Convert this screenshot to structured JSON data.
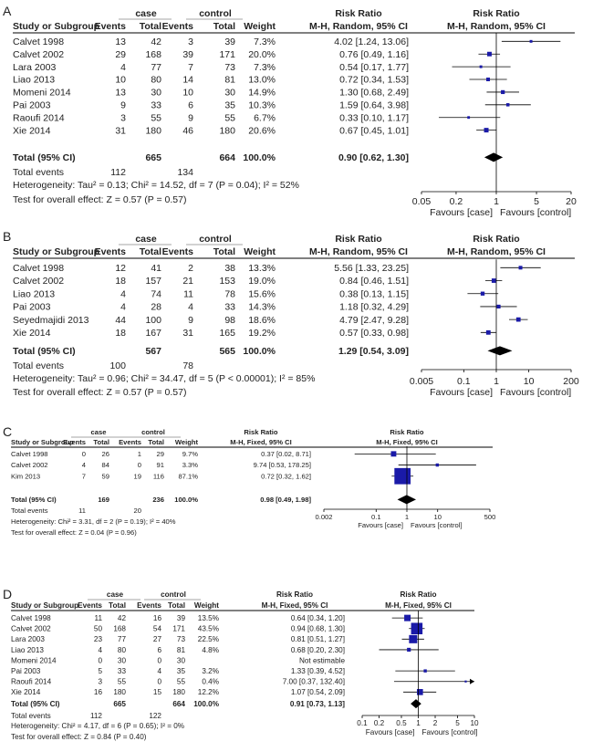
{
  "chart_data": [
    {
      "type": "forest",
      "panel_label": "A",
      "group_labels": {
        "exp": "case",
        "ctrl": "control"
      },
      "col_headers": {
        "study": "Study or Subgroup",
        "events1": "Events",
        "total1": "Total",
        "events2": "Events",
        "total2": "Total",
        "weight": "Weight",
        "rr_title": "Risk Ratio",
        "rr_method": "M-H, Random, 95% CI",
        "plot_title": "Risk Ratio",
        "plot_method": "M-H, Random, 95% CI"
      },
      "studies": [
        {
          "name": "Calvet 1998",
          "e1": "13",
          "t1": "42",
          "e2": "3",
          "t2": "39",
          "weight": "7.3%",
          "ci_text": "4.02 [1.24, 13.06]",
          "rr": 4.02,
          "lo": 1.24,
          "hi": 13.06,
          "w": 7.3
        },
        {
          "name": "Calvet 2002",
          "e1": "29",
          "t1": "168",
          "e2": "39",
          "t2": "171",
          "weight": "20.0%",
          "ci_text": "0.76 [0.49, 1.16]",
          "rr": 0.76,
          "lo": 0.49,
          "hi": 1.16,
          "w": 20.0
        },
        {
          "name": "Lara 2003",
          "e1": "4",
          "t1": "77",
          "e2": "7",
          "t2": "73",
          "weight": "7.3%",
          "ci_text": "0.54 [0.17, 1.77]",
          "rr": 0.54,
          "lo": 0.17,
          "hi": 1.77,
          "w": 7.3
        },
        {
          "name": "Liao 2013",
          "e1": "10",
          "t1": "80",
          "e2": "14",
          "t2": "81",
          "weight": "13.0%",
          "ci_text": "0.72 [0.34, 1.53]",
          "rr": 0.72,
          "lo": 0.34,
          "hi": 1.53,
          "w": 13.0
        },
        {
          "name": "Momeni 2014",
          "e1": "13",
          "t1": "30",
          "e2": "10",
          "t2": "30",
          "weight": "14.9%",
          "ci_text": "1.30 [0.68, 2.49]",
          "rr": 1.3,
          "lo": 0.68,
          "hi": 2.49,
          "w": 14.9
        },
        {
          "name": "Pai 2003",
          "e1": "9",
          "t1": "33",
          "e2": "6",
          "t2": "35",
          "weight": "10.3%",
          "ci_text": "1.59 [0.64, 3.98]",
          "rr": 1.59,
          "lo": 0.64,
          "hi": 3.98,
          "w": 10.3
        },
        {
          "name": "Raoufi 2014",
          "e1": "3",
          "t1": "55",
          "e2": "9",
          "t2": "55",
          "weight": "6.7%",
          "ci_text": "0.33 [0.10, 1.17]",
          "rr": 0.33,
          "lo": 0.1,
          "hi": 1.17,
          "w": 6.7
        },
        {
          "name": "Xie 2014",
          "e1": "31",
          "t1": "180",
          "e2": "46",
          "t2": "180",
          "weight": "20.6%",
          "ci_text": "0.67 [0.45, 1.01]",
          "rr": 0.67,
          "lo": 0.45,
          "hi": 1.01,
          "w": 20.6
        }
      ],
      "total": {
        "label": "Total (95% CI)",
        "t1": "665",
        "t2": "664",
        "weight": "100.0%",
        "ci_text": "0.90 [0.62, 1.30]",
        "rr": 0.9,
        "lo": 0.62,
        "hi": 1.3
      },
      "total_events": {
        "label": "Total events",
        "e1": "112",
        "e2": "134"
      },
      "heterogeneity": "Heterogeneity: Tau² = 0.13; Chi² = 14.52, df = 7 (P = 0.04); I² = 52%",
      "overall_test": "Test for overall effect: Z = 0.57 (P = 0.57)",
      "axis": {
        "min": 0.05,
        "max": 20,
        "ticks": [
          0.05,
          0.2,
          1,
          5,
          20
        ],
        "tick_labels": [
          "0.05",
          "0.2",
          "1",
          "5",
          "20"
        ]
      },
      "favours_left": "Favours [case]",
      "favours_right": "Favours [control]"
    },
    {
      "type": "forest",
      "panel_label": "B",
      "group_labels": {
        "exp": "case",
        "ctrl": "control"
      },
      "col_headers": {
        "study": "Study or Subgroup",
        "events1": "Events",
        "total1": "Total",
        "events2": "Events",
        "total2": "Total",
        "weight": "Weight",
        "rr_title": "Risk Ratio",
        "rr_method": "M-H, Random, 95% CI",
        "plot_title": "Risk Ratio",
        "plot_method": "M-H, Random, 95% CI"
      },
      "studies": [
        {
          "name": "Calvet 1998",
          "e1": "12",
          "t1": "41",
          "e2": "2",
          "t2": "38",
          "weight": "13.3%",
          "ci_text": "5.56 [1.33, 23.25]",
          "rr": 5.56,
          "lo": 1.33,
          "hi": 23.25,
          "w": 13.3
        },
        {
          "name": "Calvet 2002",
          "e1": "18",
          "t1": "157",
          "e2": "21",
          "t2": "153",
          "weight": "19.0%",
          "ci_text": "0.84 [0.46, 1.51]",
          "rr": 0.84,
          "lo": 0.46,
          "hi": 1.51,
          "w": 19.0
        },
        {
          "name": "Liao 2013",
          "e1": "4",
          "t1": "74",
          "e2": "11",
          "t2": "78",
          "weight": "15.6%",
          "ci_text": "0.38 [0.13, 1.15]",
          "rr": 0.38,
          "lo": 0.13,
          "hi": 1.15,
          "w": 15.6
        },
        {
          "name": "Pai 2003",
          "e1": "4",
          "t1": "28",
          "e2": "4",
          "t2": "33",
          "weight": "14.3%",
          "ci_text": "1.18 [0.32, 4.29]",
          "rr": 1.18,
          "lo": 0.32,
          "hi": 4.29,
          "w": 14.3
        },
        {
          "name": "Seyedmajidi 2013",
          "e1": "44",
          "t1": "100",
          "e2": "9",
          "t2": "98",
          "weight": "18.6%",
          "ci_text": "4.79 [2.47, 9.28]",
          "rr": 4.79,
          "lo": 2.47,
          "hi": 9.28,
          "w": 18.6
        },
        {
          "name": "Xie 2014",
          "e1": "18",
          "t1": "167",
          "e2": "31",
          "t2": "165",
          "weight": "19.2%",
          "ci_text": "0.57 [0.33, 0.98]",
          "rr": 0.57,
          "lo": 0.33,
          "hi": 0.98,
          "w": 19.2
        }
      ],
      "total": {
        "label": "Total (95% CI)",
        "t1": "567",
        "t2": "565",
        "weight": "100.0%",
        "ci_text": "1.29 [0.54, 3.09]",
        "rr": 1.29,
        "lo": 0.54,
        "hi": 3.09
      },
      "total_events": {
        "label": "Total events",
        "e1": "100",
        "e2": "78"
      },
      "heterogeneity": "Heterogeneity: Tau² = 0.96; Chi² = 34.47, df = 5 (P < 0.00001); I² = 85%",
      "overall_test": "Test for overall effect: Z = 0.57 (P = 0.57)",
      "axis": {
        "min": 0.005,
        "max": 200,
        "ticks": [
          0.005,
          0.1,
          1,
          10,
          200
        ],
        "tick_labels": [
          "0.005",
          "0.1",
          "1",
          "10",
          "200"
        ]
      },
      "favours_left": "Favours [case]",
      "favours_right": "Favours [control]"
    },
    {
      "type": "forest",
      "panel_label": "C",
      "group_labels": {
        "exp": "case",
        "ctrl": "control"
      },
      "col_headers": {
        "study": "Study or Subgroup",
        "events1": "Events",
        "total1": "Total",
        "events2": "Events",
        "total2": "Total",
        "weight": "Weight",
        "rr_title": "Risk Ratio",
        "rr_method": "M-H, Fixed, 95% CI",
        "plot_title": "Risk Ratio",
        "plot_method": "M-H, Fixed, 95% CI"
      },
      "studies": [
        {
          "name": "Calvet 1998",
          "e1": "0",
          "t1": "26",
          "e2": "1",
          "t2": "29",
          "weight": "9.7%",
          "ci_text": "0.37 [0.02, 8.71]",
          "rr": 0.37,
          "lo": 0.02,
          "hi": 8.71,
          "w": 9.7
        },
        {
          "name": "Calvet 2002",
          "e1": "4",
          "t1": "84",
          "e2": "0",
          "t2": "91",
          "weight": "3.3%",
          "ci_text": "9.74 [0.53, 178.25]",
          "rr": 9.74,
          "lo": 0.53,
          "hi": 178.25,
          "w": 3.3
        },
        {
          "name": "Kim 2013",
          "e1": "7",
          "t1": "59",
          "e2": "19",
          "t2": "116",
          "weight": "87.1%",
          "ci_text": "0.72 [0.32, 1.62]",
          "rr": 0.72,
          "lo": 0.32,
          "hi": 1.62,
          "w": 87.1
        }
      ],
      "total": {
        "label": "Total (95% CI)",
        "t1": "169",
        "t2": "236",
        "weight": "100.0%",
        "ci_text": "0.98 [0.49, 1.98]",
        "rr": 0.98,
        "lo": 0.49,
        "hi": 1.98
      },
      "total_events": {
        "label": "Total events",
        "e1": "11",
        "e2": "20"
      },
      "heterogeneity": "Heterogeneity: Chi² = 3.31, df = 2 (P = 0.19); I² = 40%",
      "overall_test": "Test for overall effect: Z = 0.04 (P = 0.96)",
      "axis": {
        "min": 0.002,
        "max": 500,
        "ticks": [
          0.002,
          0.1,
          1,
          10,
          500
        ],
        "tick_labels": [
          "0.002",
          "0.1",
          "1",
          "10",
          "500"
        ]
      },
      "favours_left": "Favours [case]",
      "favours_right": "Favours [control]"
    },
    {
      "type": "forest",
      "panel_label": "D",
      "group_labels": {
        "exp": "case",
        "ctrl": "control"
      },
      "col_headers": {
        "study": "Study or Subgroup",
        "events1": "Events",
        "total1": "Total",
        "events2": "Events",
        "total2": "Total",
        "weight": "Weight",
        "rr_title": "Risk Ratio",
        "rr_method": "M-H, Fixed, 95% CI",
        "plot_title": "Risk Ratio",
        "plot_method": "M-H, Fixed, 95% CI"
      },
      "studies": [
        {
          "name": "Calvet 1998",
          "e1": "11",
          "t1": "42",
          "e2": "16",
          "t2": "39",
          "weight": "13.5%",
          "ci_text": "0.64 [0.34, 1.20]",
          "rr": 0.64,
          "lo": 0.34,
          "hi": 1.2,
          "w": 13.5
        },
        {
          "name": "Calvet 2002",
          "e1": "50",
          "t1": "168",
          "e2": "54",
          "t2": "171",
          "weight": "43.5%",
          "ci_text": "0.94 [0.68, 1.30]",
          "rr": 0.94,
          "lo": 0.68,
          "hi": 1.3,
          "w": 43.5
        },
        {
          "name": "Lara 2003",
          "e1": "23",
          "t1": "77",
          "e2": "27",
          "t2": "73",
          "weight": "22.5%",
          "ci_text": "0.81 [0.51, 1.27]",
          "rr": 0.81,
          "lo": 0.51,
          "hi": 1.27,
          "w": 22.5
        },
        {
          "name": "Liao 2013",
          "e1": "4",
          "t1": "80",
          "e2": "6",
          "t2": "81",
          "weight": "4.8%",
          "ci_text": "0.68 [0.20, 2.30]",
          "rr": 0.68,
          "lo": 0.2,
          "hi": 2.3,
          "w": 4.8
        },
        {
          "name": "Momeni 2014",
          "e1": "0",
          "t1": "30",
          "e2": "0",
          "t2": "30",
          "weight": "",
          "ci_text": "Not estimable",
          "rr": null,
          "lo": null,
          "hi": null,
          "w": 0
        },
        {
          "name": "Pai 2003",
          "e1": "5",
          "t1": "33",
          "e2": "4",
          "t2": "35",
          "weight": "3.2%",
          "ci_text": "1.33 [0.39, 4.52]",
          "rr": 1.33,
          "lo": 0.39,
          "hi": 4.52,
          "w": 3.2
        },
        {
          "name": "Raoufi 2014",
          "e1": "3",
          "t1": "55",
          "e2": "0",
          "t2": "55",
          "weight": "0.4%",
          "ci_text": "7.00 [0.37, 132.40]",
          "rr": 7.0,
          "lo": 0.37,
          "hi": 132.4,
          "w": 0.4
        },
        {
          "name": "Xie 2014",
          "e1": "16",
          "t1": "180",
          "e2": "15",
          "t2": "180",
          "weight": "12.2%",
          "ci_text": "1.07 [0.54, 2.09]",
          "rr": 1.07,
          "lo": 0.54,
          "hi": 2.09,
          "w": 12.2
        }
      ],
      "total": {
        "label": "Total (95% CI)",
        "t1": "665",
        "t2": "664",
        "weight": "100.0%",
        "ci_text": "0.91 [0.73, 1.13]",
        "rr": 0.91,
        "lo": 0.73,
        "hi": 1.13
      },
      "total_events": {
        "label": "Total events",
        "e1": "112",
        "e2": "122"
      },
      "heterogeneity": "Heterogeneity: Chi² = 4.17, df = 6 (P = 0.65); I² = 0%",
      "overall_test": "Test for overall effect: Z = 0.84 (P = 0.40)",
      "axis": {
        "min": 0.1,
        "max": 10,
        "ticks": [
          0.1,
          0.2,
          0.5,
          1,
          2,
          5,
          10
        ],
        "tick_labels": [
          "0.1",
          "0.2",
          "0.5",
          "1",
          "2",
          "5",
          "10"
        ]
      },
      "favours_left": "Favours [case]",
      "favours_right": "Favours [control]"
    }
  ],
  "colors": {
    "marker": "#1a1aa8",
    "diamond": "#000000",
    "line": "#000000",
    "ci_line": "#1a1aa8",
    "text": "#222222"
  }
}
